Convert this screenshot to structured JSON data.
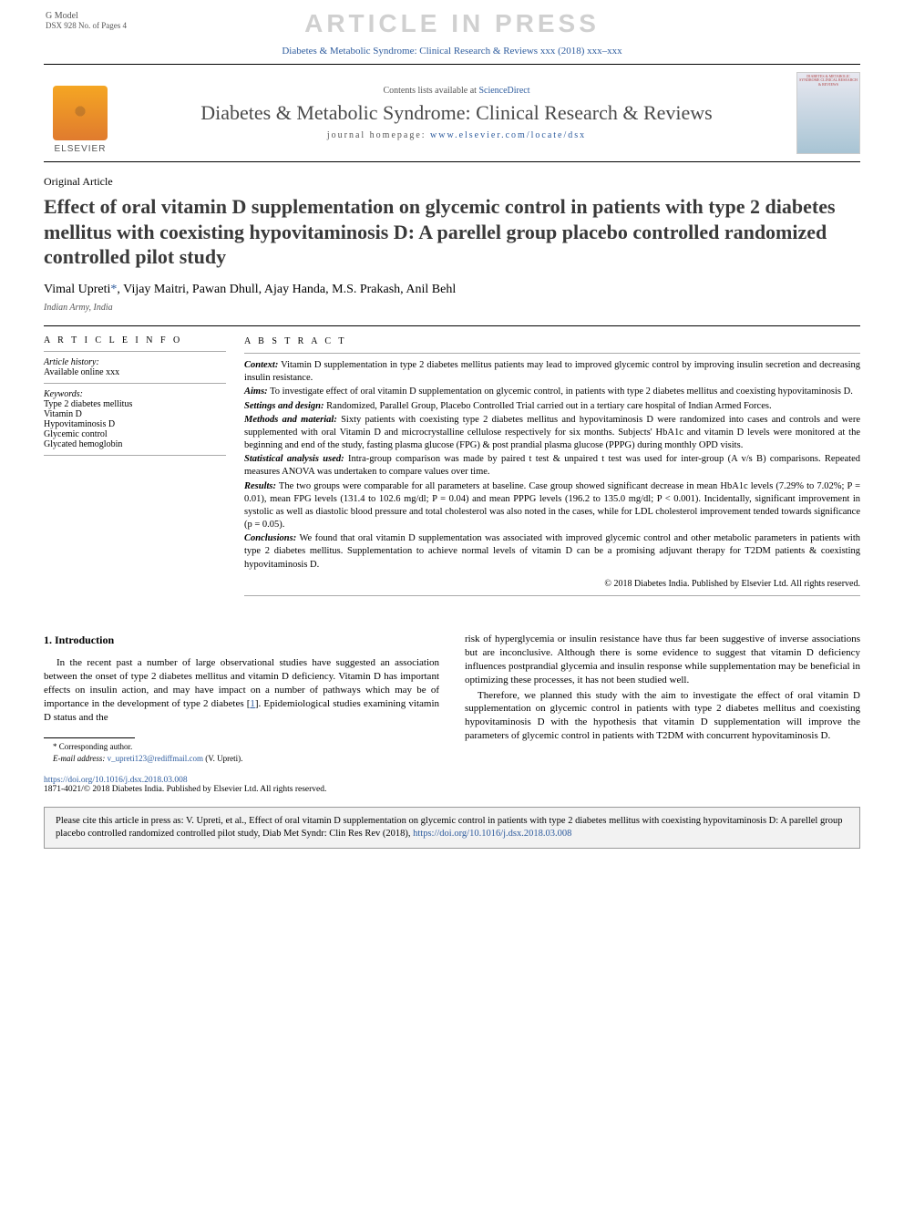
{
  "gmodel": {
    "line1": "G Model",
    "line2": "DSX 928 No. of Pages 4"
  },
  "watermark": "ARTICLE IN PRESS",
  "citation_top": "Diabetes & Metabolic Syndrome: Clinical Research & Reviews xxx (2018) xxx–xxx",
  "header": {
    "contents_prefix": "Contents lists available at ",
    "contents_link": "ScienceDirect",
    "journal_name": "Diabetes & Metabolic Syndrome: Clinical Research & Reviews",
    "homepage_prefix": "journal homepage: ",
    "homepage_link": "www.elsevier.com/locate/dsx",
    "elsevier": "ELSEVIER",
    "cover_text": "DIABETES & METABOLIC SYNDROME CLINICAL RESEARCH & REVIEWS"
  },
  "article_type": "Original Article",
  "title": "Effect of oral vitamin D supplementation on glycemic control in patients with type 2 diabetes mellitus with coexisting hypovitaminosis D: A parellel group placebo controlled randomized controlled pilot study",
  "authors": {
    "list": "Vimal Upreti",
    "corr_mark": "*",
    "rest": ", Vijay Maitri, Pawan Dhull, Ajay Handa, M.S. Prakash, Anil Behl"
  },
  "affiliation": "Indian Army, India",
  "info": {
    "heading": "A R T I C L E   I N F O",
    "history_label": "Article history:",
    "history_value": "Available online xxx",
    "keywords_label": "Keywords:",
    "keywords": [
      "Type 2 diabetes mellitus",
      "Vitamin D",
      "Hypovitaminosis D",
      "Glycemic control",
      "Glycated hemoglobin"
    ]
  },
  "abstract": {
    "heading": "A B S T R A C T",
    "sections": [
      {
        "label": "Context:",
        "text": " Vitamin D supplementation in type 2 diabetes mellitus patients may lead to improved glycemic control by improving insulin secretion and decreasing insulin resistance."
      },
      {
        "label": "Aims:",
        "text": " To investigate effect of oral vitamin D supplementation on glycemic control, in patients with type 2 diabetes mellitus and coexisting hypovitaminosis D."
      },
      {
        "label": "Settings and design:",
        "text": " Randomized, Parallel Group, Placebo Controlled Trial carried out in a tertiary care hospital of Indian Armed Forces."
      },
      {
        "label": "Methods and material:",
        "text": " Sixty patients with coexisting type 2 diabetes mellitus and hypovitaminosis D were randomized into cases and controls and were supplemented with oral Vitamin D and microcrystalline cellulose respectively for six months. Subjects' HbA1c and vitamin D levels were monitored at the beginning and end of the study, fasting plasma glucose (FPG) & post prandial plasma glucose (PPPG) during monthly OPD visits."
      },
      {
        "label": "Statistical analysis used:",
        "text": " Intra-group comparison was made by paired t test & unpaired t test was used for inter-group (A v/s B) comparisons. Repeated measures ANOVA was undertaken to compare values over time."
      },
      {
        "label": "Results:",
        "text": " The two groups were comparable for all parameters at baseline. Case group showed significant decrease in mean HbA1c levels (7.29% to 7.02%; P = 0.01), mean FPG levels (131.4 to 102.6 mg/dl; P = 0.04) and mean PPPG levels (196.2 to 135.0 mg/dl; P < 0.001). Incidentally, significant improvement in systolic as well as diastolic blood pressure and total cholesterol was also noted in the cases, while for LDL cholesterol improvement tended towards significance (p = 0.05)."
      },
      {
        "label": "Conclusions:",
        "text": " We found that oral vitamin D supplementation was associated with improved glycemic control and other metabolic parameters in patients with type 2 diabetes mellitus. Supplementation to achieve normal levels of vitamin D can be a promising adjuvant therapy for T2DM patients & coexisting hypovitaminosis D."
      }
    ],
    "copyright": "© 2018 Diabetes India. Published by Elsevier Ltd. All rights reserved."
  },
  "intro": {
    "heading": "1. Introduction",
    "p1_a": "In the recent past a number of large observational studies have suggested an association between the onset of type 2 diabetes mellitus and vitamin D deficiency. Vitamin D has important effects on insulin action, and may have impact on a number of pathways which may be of importance in the development of type 2 diabetes [",
    "p1_ref": "1",
    "p1_b": "]. Epidemiological studies examining vitamin D status and the",
    "p2": "risk of hyperglycemia or insulin resistance have thus far been suggestive of inverse associations but are inconclusive. Although there is some evidence to suggest that vitamin D deficiency influences postprandial glycemia and insulin response while supplementation may be beneficial in optimizing these processes, it has not been studied well.",
    "p3": "Therefore, we planned this study with the aim to investigate the effect of oral vitamin D supplementation on glycemic control in patients with type 2 diabetes mellitus and coexisting hypovitaminosis D with the hypothesis that vitamin D supplementation will improve the parameters of glycemic control in patients with T2DM with concurrent hypovitaminosis D."
  },
  "footnote": {
    "corr": "* Corresponding author.",
    "email_label": "E-mail address: ",
    "email": "v_upreti123@rediffmail.com",
    "email_suffix": " (V. Upreti)."
  },
  "doi": {
    "link": "https://doi.org/10.1016/j.dsx.2018.03.008",
    "line": "1871-4021/© 2018 Diabetes India. Published by Elsevier Ltd. All rights reserved."
  },
  "citebox": {
    "text_a": "Please cite this article in press as: V. Upreti, et al., Effect of oral vitamin D supplementation on glycemic control in patients with type 2 diabetes mellitus with coexisting hypovitaminosis D: A parellel group placebo controlled randomized controlled pilot study, Diab Met Syndr: Clin Res Rev (2018), ",
    "link": "https://doi.org/10.1016/j.dsx.2018.03.008"
  },
  "colors": {
    "link": "#2e5c9e",
    "watermark": "#d0d0d0",
    "text": "#000000",
    "muted": "#555555"
  }
}
